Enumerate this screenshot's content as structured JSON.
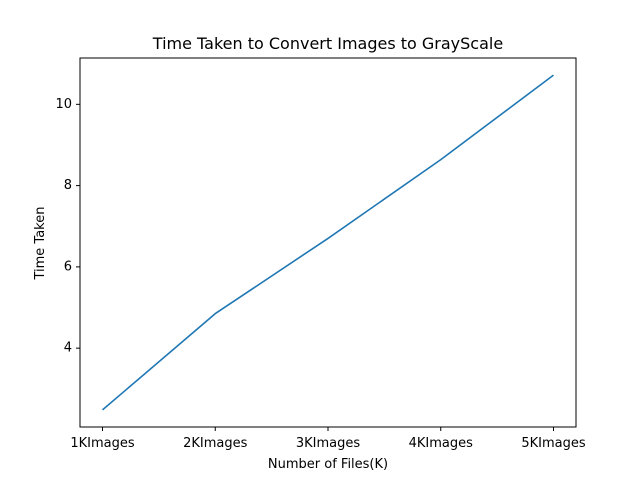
{
  "chart_data": {
    "type": "line",
    "title": "Time Taken to Convert Images to GrayScale",
    "xlabel": "Number of Files(K)",
    "ylabel": "Time Taken",
    "categories": [
      "1KImages",
      "2KImages",
      "3KImages",
      "4KImages",
      "5KImages"
    ],
    "series": [
      {
        "values": [
          2.48,
          4.85,
          6.7,
          8.64,
          10.72
        ],
        "color": "#1f77b4"
      }
    ],
    "ylim": [
      2.06,
      11.14
    ],
    "yticks": [
      4,
      6,
      8,
      10
    ],
    "grid": false,
    "legend": "none"
  }
}
